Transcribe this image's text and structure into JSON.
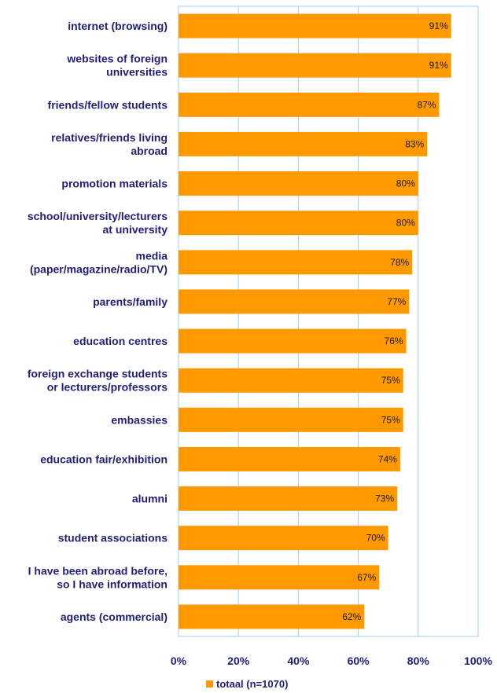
{
  "chart_data": {
    "type": "bar",
    "orientation": "horizontal",
    "categories": [
      [
        "internet (browsing)"
      ],
      [
        "websites of foreign",
        "universities"
      ],
      [
        "friends/fellow students"
      ],
      [
        "relatives/friends living",
        "abroad"
      ],
      [
        "promotion materials"
      ],
      [
        "school/university/lecturers",
        "at university"
      ],
      [
        "media",
        "(paper/magazine/radio/TV)"
      ],
      [
        "parents/family"
      ],
      [
        "education centres"
      ],
      [
        "foreign exchange students",
        "or lecturers/professors"
      ],
      [
        "embassies"
      ],
      [
        "education fair/exhibition"
      ],
      [
        "alumni"
      ],
      [
        "student associations"
      ],
      [
        "I have been abroad before,",
        "so I have information"
      ],
      [
        "agents (commercial)"
      ]
    ],
    "series": [
      {
        "name": "totaal (n=1070)",
        "values": [
          91,
          91,
          87,
          83,
          80,
          80,
          78,
          77,
          76,
          75,
          75,
          74,
          73,
          70,
          67,
          62
        ],
        "labels": [
          "91%",
          "91%",
          "87%",
          "83%",
          "80%",
          "80%",
          "78%",
          "77%",
          "76%",
          "75%",
          "75%",
          "74%",
          "73%",
          "70%",
          "67%",
          "62%"
        ]
      }
    ],
    "xlim": [
      0,
      100
    ],
    "xticks": [
      "0%",
      "20%",
      "40%",
      "60%",
      "80%",
      "100%"
    ],
    "grid": "vertical",
    "legend": "bottom",
    "colors": {
      "bar": "#ff9900",
      "grid": "#9fd0f0",
      "label": "#1f1f7a"
    }
  }
}
